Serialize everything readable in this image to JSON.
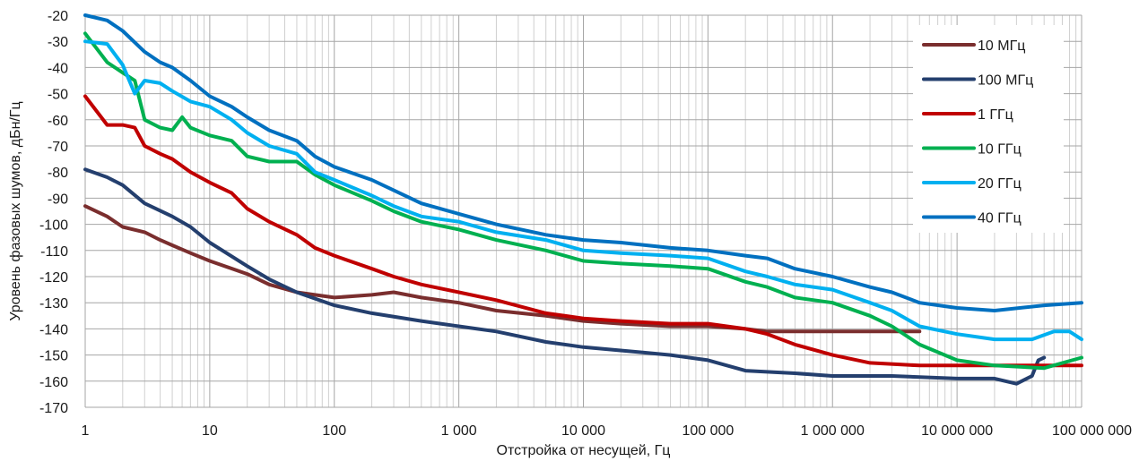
{
  "chart_data": {
    "type": "line",
    "title": "",
    "xlabel": "Отстройка от несущей, Гц",
    "ylabel": "Уровень фазовых шумов, дБн/Гц",
    "xscale": "log",
    "xlim": [
      1,
      100000000
    ],
    "ylim": [
      -170,
      -20
    ],
    "grid": true,
    "legend_position": "top-right",
    "x_ticks": [
      1,
      10,
      100,
      1000,
      10000,
      100000,
      1000000,
      10000000,
      100000000
    ],
    "x_tick_labels": [
      "1",
      "10",
      "100",
      "1 000",
      "10 000",
      "100 000",
      "1 000 000",
      "10 000 000",
      "100 000 000"
    ],
    "y_ticks": [
      -20,
      -30,
      -40,
      -50,
      -60,
      -70,
      -80,
      -90,
      -100,
      -110,
      -120,
      -130,
      -140,
      -150,
      -160,
      -170
    ],
    "y_tick_labels": [
      "-20",
      "-30",
      "-40",
      "-50",
      "-60",
      "-70",
      "-80",
      "-90",
      "-100",
      "-110",
      "-120",
      "-130",
      "-140",
      "-150",
      "-160",
      "-170"
    ],
    "series": [
      {
        "name": "10 МГц",
        "color": "#7a2e2e",
        "points": [
          [
            1,
            -93
          ],
          [
            1.5,
            -97
          ],
          [
            2,
            -101
          ],
          [
            3,
            -103
          ],
          [
            4,
            -106
          ],
          [
            5,
            -108
          ],
          [
            7,
            -111
          ],
          [
            10,
            -114
          ],
          [
            20,
            -119
          ],
          [
            30,
            -123
          ],
          [
            50,
            -126
          ],
          [
            70,
            -127
          ],
          [
            100,
            -128
          ],
          [
            200,
            -127
          ],
          [
            300,
            -126
          ],
          [
            500,
            -128
          ],
          [
            1000,
            -130
          ],
          [
            2000,
            -133
          ],
          [
            5000,
            -135
          ],
          [
            10000,
            -137
          ],
          [
            20000,
            -138
          ],
          [
            50000,
            -139
          ],
          [
            100000,
            -139
          ],
          [
            200000,
            -140
          ],
          [
            300000,
            -141
          ],
          [
            500000,
            -141
          ],
          [
            1000000,
            -141
          ],
          [
            2000000,
            -141
          ],
          [
            4000000,
            -141
          ],
          [
            5000000,
            -141
          ]
        ]
      },
      {
        "name": "100 МГц",
        "color": "#243f6e",
        "points": [
          [
            1,
            -79
          ],
          [
            1.5,
            -82
          ],
          [
            2,
            -85
          ],
          [
            3,
            -92
          ],
          [
            5,
            -97
          ],
          [
            7,
            -101
          ],
          [
            10,
            -107
          ],
          [
            20,
            -116
          ],
          [
            30,
            -121
          ],
          [
            50,
            -126
          ],
          [
            100,
            -131
          ],
          [
            200,
            -134
          ],
          [
            500,
            -137
          ],
          [
            1000,
            -139
          ],
          [
            2000,
            -141
          ],
          [
            5000,
            -145
          ],
          [
            10000,
            -147
          ],
          [
            30000,
            -149
          ],
          [
            50000,
            -150
          ],
          [
            100000,
            -152
          ],
          [
            200000,
            -156
          ],
          [
            500000,
            -157
          ],
          [
            1000000,
            -158
          ],
          [
            3000000,
            -158
          ],
          [
            10000000,
            -159
          ],
          [
            20000000,
            -159
          ],
          [
            30000000,
            -161
          ],
          [
            40000000,
            -158
          ],
          [
            45000000,
            -152
          ],
          [
            50000000,
            -151
          ]
        ]
      },
      {
        "name": "1 ГГц",
        "color": "#c00000",
        "points": [
          [
            1,
            -51
          ],
          [
            1.5,
            -62
          ],
          [
            2,
            -62
          ],
          [
            2.5,
            -63
          ],
          [
            3,
            -70
          ],
          [
            4,
            -73
          ],
          [
            5,
            -75
          ],
          [
            7,
            -80
          ],
          [
            10,
            -84
          ],
          [
            15,
            -88
          ],
          [
            20,
            -94
          ],
          [
            30,
            -99
          ],
          [
            50,
            -104
          ],
          [
            70,
            -109
          ],
          [
            100,
            -112
          ],
          [
            200,
            -117
          ],
          [
            300,
            -120
          ],
          [
            500,
            -123
          ],
          [
            1000,
            -126
          ],
          [
            2000,
            -129
          ],
          [
            5000,
            -134
          ],
          [
            10000,
            -136
          ],
          [
            20000,
            -137
          ],
          [
            50000,
            -138
          ],
          [
            100000,
            -138
          ],
          [
            200000,
            -140
          ],
          [
            300000,
            -142
          ],
          [
            500000,
            -146
          ],
          [
            1000000,
            -150
          ],
          [
            2000000,
            -153
          ],
          [
            5000000,
            -154
          ],
          [
            10000000,
            -154
          ],
          [
            50000000,
            -154
          ],
          [
            100000000,
            -154
          ]
        ]
      },
      {
        "name": "10 ГГц",
        "color": "#00b050",
        "points": [
          [
            1,
            -27
          ],
          [
            1.5,
            -38
          ],
          [
            2,
            -42
          ],
          [
            2.5,
            -45
          ],
          [
            3,
            -60
          ],
          [
            4,
            -63
          ],
          [
            5,
            -64
          ],
          [
            6,
            -59
          ],
          [
            7,
            -63
          ],
          [
            10,
            -66
          ],
          [
            15,
            -68
          ],
          [
            20,
            -74
          ],
          [
            30,
            -76
          ],
          [
            50,
            -76
          ],
          [
            70,
            -81
          ],
          [
            100,
            -85
          ],
          [
            200,
            -91
          ],
          [
            300,
            -95
          ],
          [
            500,
            -99
          ],
          [
            1000,
            -102
          ],
          [
            2000,
            -106
          ],
          [
            5000,
            -110
          ],
          [
            10000,
            -114
          ],
          [
            20000,
            -115
          ],
          [
            50000,
            -116
          ],
          [
            100000,
            -117
          ],
          [
            200000,
            -122
          ],
          [
            300000,
            -124
          ],
          [
            500000,
            -128
          ],
          [
            1000000,
            -130
          ],
          [
            2000000,
            -135
          ],
          [
            3000000,
            -139
          ],
          [
            5000000,
            -146
          ],
          [
            10000000,
            -152
          ],
          [
            20000000,
            -154
          ],
          [
            50000000,
            -155
          ],
          [
            100000000,
            -151
          ]
        ]
      },
      {
        "name": "20 ГГц",
        "color": "#00b0f0",
        "points": [
          [
            1,
            -30
          ],
          [
            1.5,
            -31
          ],
          [
            2,
            -39
          ],
          [
            2.5,
            -50
          ],
          [
            3,
            -45
          ],
          [
            4,
            -46
          ],
          [
            5,
            -49
          ],
          [
            7,
            -53
          ],
          [
            10,
            -55
          ],
          [
            15,
            -60
          ],
          [
            20,
            -65
          ],
          [
            30,
            -70
          ],
          [
            50,
            -73
          ],
          [
            70,
            -80
          ],
          [
            100,
            -83
          ],
          [
            200,
            -89
          ],
          [
            300,
            -93
          ],
          [
            500,
            -97
          ],
          [
            1000,
            -99
          ],
          [
            2000,
            -103
          ],
          [
            5000,
            -106
          ],
          [
            10000,
            -110
          ],
          [
            20000,
            -111
          ],
          [
            50000,
            -112
          ],
          [
            100000,
            -113
          ],
          [
            200000,
            -118
          ],
          [
            300000,
            -120
          ],
          [
            500000,
            -123
          ],
          [
            1000000,
            -125
          ],
          [
            2000000,
            -130
          ],
          [
            3000000,
            -133
          ],
          [
            5000000,
            -139
          ],
          [
            10000000,
            -142
          ],
          [
            20000000,
            -144
          ],
          [
            40000000,
            -144
          ],
          [
            60000000,
            -141
          ],
          [
            80000000,
            -141
          ],
          [
            100000000,
            -144
          ]
        ]
      },
      {
        "name": "40 ГГц",
        "color": "#0070c0",
        "points": [
          [
            1,
            -20
          ],
          [
            1.5,
            -22
          ],
          [
            2,
            -26
          ],
          [
            3,
            -34
          ],
          [
            4,
            -38
          ],
          [
            5,
            -40
          ],
          [
            7,
            -45
          ],
          [
            10,
            -51
          ],
          [
            15,
            -55
          ],
          [
            20,
            -59
          ],
          [
            30,
            -64
          ],
          [
            50,
            -68
          ],
          [
            70,
            -74
          ],
          [
            100,
            -78
          ],
          [
            200,
            -83
          ],
          [
            300,
            -87
          ],
          [
            500,
            -92
          ],
          [
            1000,
            -96
          ],
          [
            2000,
            -100
          ],
          [
            5000,
            -104
          ],
          [
            10000,
            -106
          ],
          [
            20000,
            -107
          ],
          [
            50000,
            -109
          ],
          [
            100000,
            -110
          ],
          [
            200000,
            -112
          ],
          [
            300000,
            -113
          ],
          [
            500000,
            -117
          ],
          [
            1000000,
            -120
          ],
          [
            2000000,
            -124
          ],
          [
            3000000,
            -126
          ],
          [
            5000000,
            -130
          ],
          [
            10000000,
            -132
          ],
          [
            20000000,
            -133
          ],
          [
            50000000,
            -131
          ],
          [
            100000000,
            -130
          ]
        ]
      }
    ]
  }
}
